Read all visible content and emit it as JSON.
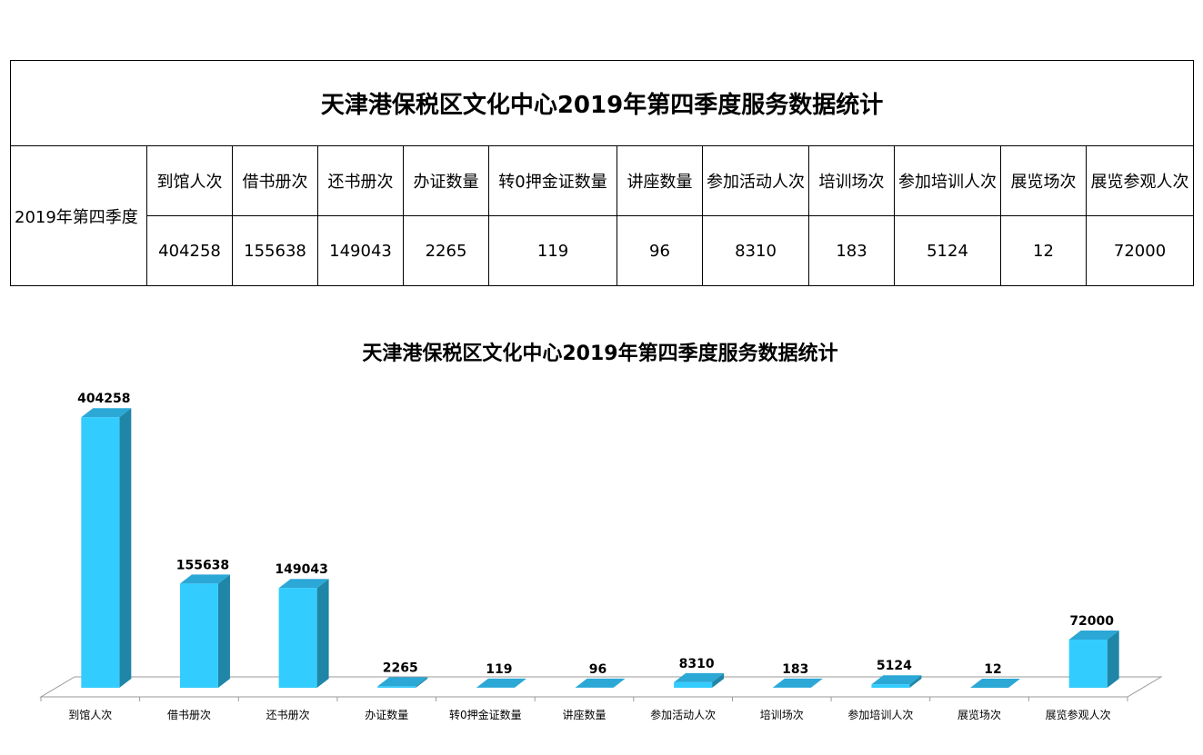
{
  "table": {
    "title": "天津港保税区文化中心2019年第四季度服务数据统计",
    "period": "2019年第四季度",
    "headers": [
      "到馆人次",
      "借书册次",
      "还书册次",
      "办证数量",
      "转0押金证数量",
      "讲座数量",
      "参加活动人次",
      "培训场次",
      "参加培训人次",
      "展览场次",
      "展览参观人次"
    ],
    "values": [
      "404258",
      "155638",
      "149043",
      "2265",
      "119",
      "96",
      "8310",
      "183",
      "5124",
      "12",
      "72000"
    ]
  },
  "chart_data": {
    "type": "bar",
    "title": "天津港保税区文化中心2019年第四季度服务数据统计",
    "categories": [
      "到馆人次",
      "借书册次",
      "还书册次",
      "办证数量",
      "转0押金证数量",
      "讲座数量",
      "参加活动人次",
      "培训场次",
      "参加培训人次",
      "展览场次",
      "展览参观人次"
    ],
    "values": [
      404258,
      155638,
      149043,
      2265,
      119,
      96,
      8310,
      183,
      5124,
      12,
      72000
    ],
    "xlabel": "",
    "ylabel": "",
    "ylim": [
      0,
      410000
    ],
    "grid": false,
    "legend": "none",
    "bar_style": "3d",
    "colors": {
      "bar_front": "#33CCFF",
      "bar_side": "#1F86A8",
      "bar_top": "#2BA8D6"
    }
  }
}
